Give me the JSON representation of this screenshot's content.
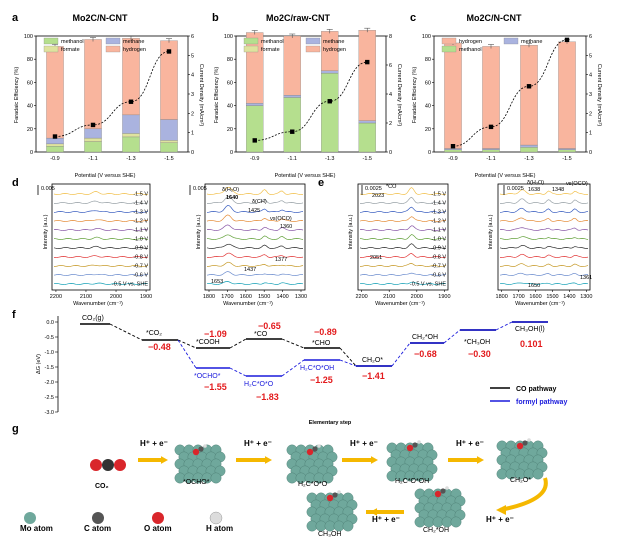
{
  "panels": {
    "a": {
      "letter": "a",
      "title": "Mo2C/N-CNT",
      "legend": [
        "methanol",
        "methane",
        "formate",
        "hydrogen"
      ],
      "ylabel": "Faradaic Efficiency (%)",
      "y2label": "Current Density (mA/cm²)",
      "xlabel": "Potential (V versus SHE)"
    },
    "b": {
      "letter": "b",
      "title": "Mo2C/raw-CNT",
      "legend": [
        "methanol",
        "methane",
        "formate",
        "hydrogen"
      ],
      "ylabel": "Faradaic Efficiency (%)",
      "y2label": "Current Density (mA/cm²)",
      "xlabel": "Potential (V versus SHE)"
    },
    "c": {
      "letter": "c",
      "title": "Mo2C/N-CNT",
      "legend": [
        "hydrogen",
        "methane",
        "methanol"
      ],
      "ylabel": "Faradaic Efficiency (%)",
      "y2label": "Current Density (mA/cm²)",
      "xlabel": "Potential (V versus SHE)"
    },
    "d": {
      "letter": "d",
      "scale_left": "0.005",
      "scale_right": "0.005",
      "ylabel": "Intensity (a.u.)",
      "xlabel": "Wavenumber (cm⁻¹)",
      "xticks_left": [
        "2200",
        "2100",
        "2000",
        "1900"
      ],
      "xticks_right": [
        "1800",
        "1700",
        "1600",
        "1500",
        "1400",
        "1300"
      ],
      "potentials": [
        "-1.5 V",
        "-1.4 V",
        "-1.3 V",
        "-1.2 V",
        "-1.1 V",
        "-1.0 V",
        "-0.9 V",
        "-0.8 V",
        "-0.7 V",
        "-0.6 V",
        "-0.5 V vs. SHE"
      ],
      "annotations": [
        "δ(H₂O)",
        "1640",
        "δ(CH)",
        "1425",
        "νs(OCO)",
        "1360",
        "1653",
        "1437",
        "1377"
      ]
    },
    "e": {
      "letter": "e",
      "scale_left": "0.0025",
      "scale_right": "0.0025",
      "ylabel": "Intensity (a.u.)",
      "xlabel": "Wavenumber (cm⁻¹)",
      "xticks_left": [
        "2200",
        "2100",
        "2000",
        "1900"
      ],
      "xticks_right": [
        "1800",
        "1700",
        "1600",
        "1500",
        "1400",
        "1300"
      ],
      "potentials": [
        "-1.5 V",
        "-1.4 V",
        "-1.3 V",
        "-1.2 V",
        "-1.1 V",
        "-1.0 V",
        "-0.9 V",
        "-0.8 V",
        "-0.7 V",
        "-0.6 V",
        "-0.5 V vs. SHE"
      ],
      "annotations": [
        "*CO",
        "2023",
        "2051",
        "δ(H₂O)",
        "1638",
        "1348",
        "νs(OCO)",
        "1650",
        "1361"
      ]
    },
    "f": {
      "letter": "f",
      "ylabel": "ΔG (eV)",
      "xlabel": "Elementary step",
      "legend": [
        "CO pathway",
        "formyl pathway"
      ],
      "species_co": [
        "CO₂(g)",
        "*CO₂",
        "*COOH",
        "*CO",
        "*CHO",
        "CH₂O*",
        "CH₂*OH",
        "*CH₃OH",
        "CH₃OH(l)"
      ],
      "species_formyl": [
        "*OCHO*",
        "H₂C*O*O",
        "H₂C*O*OH"
      ],
      "energies_co": [
        "−0.48",
        "−1.09",
        "−0.65",
        "−0.89",
        "−1.41",
        "−0.68",
        "−0.30",
        "0.101"
      ],
      "energies_formyl": [
        "−1.55",
        "−1.83",
        "−1.25"
      ]
    },
    "g": {
      "letter": "g",
      "step": "H⁺ + e⁻",
      "labels": [
        "CO₂",
        "*OCHO*",
        "H₂C*O*O",
        "H₂C*O*OH",
        "CH₂O*",
        "CH₂*OH",
        "CH₃OH"
      ],
      "atoms": [
        "Mo atom",
        "C atom",
        "O atom",
        "H atom"
      ]
    }
  },
  "chart_data": [
    {
      "type": "bar",
      "panel": "a",
      "title": "Mo2C/N-CNT",
      "categories": [
        "-0.9",
        "-1.1",
        "-1.3",
        "-1.5"
      ],
      "series": [
        {
          "name": "methanol",
          "values": [
            5,
            9,
            13,
            8
          ]
        },
        {
          "name": "formate",
          "values": [
            2,
            3,
            3,
            2
          ]
        },
        {
          "name": "methane",
          "values": [
            5,
            8,
            16,
            18
          ]
        },
        {
          "name": "hydrogen",
          "values": [
            79,
            77,
            66,
            68
          ]
        }
      ],
      "current_density": [
        0.8,
        1.4,
        2.6,
        5.2
      ],
      "ylim": [
        0,
        100
      ],
      "y2lim": [
        0,
        6
      ],
      "xlabel": "Potential (V versus SHE)",
      "ylabel": "Faradaic Efficiency (%)",
      "y2label": "Current Density (mA/cm²)"
    },
    {
      "type": "bar",
      "panel": "b",
      "title": "Mo2C/raw-CNT",
      "categories": [
        "-0.9",
        "-1.1",
        "-1.3",
        "-1.5"
      ],
      "series": [
        {
          "name": "methanol",
          "values": [
            40,
            47,
            68,
            25
          ]
        },
        {
          "name": "formate",
          "values": [
            0,
            0,
            0,
            0
          ]
        },
        {
          "name": "methane",
          "values": [
            2,
            2,
            2,
            2
          ]
        },
        {
          "name": "hydrogen",
          "values": [
            61,
            51,
            34,
            78
          ]
        }
      ],
      "current_density": [
        0.8,
        1.4,
        3.5,
        6.2
      ],
      "ylim": [
        0,
        100
      ],
      "y2lim": [
        0,
        8
      ],
      "xlabel": "Potential (V versus SHE)",
      "ylabel": "Faradaic Efficiency (%)",
      "y2label": "Current Density (mA/cm²)"
    },
    {
      "type": "bar",
      "panel": "c",
      "title": "Mo2C/N-CNT",
      "categories": [
        "-0.9",
        "-1.1",
        "-1.3",
        "-1.5"
      ],
      "series": [
        {
          "name": "methanol",
          "values": [
            2,
            2,
            4,
            2
          ]
        },
        {
          "name": "methane",
          "values": [
            1,
            1,
            2,
            1
          ]
        },
        {
          "name": "hydrogen",
          "values": [
            91,
            88,
            86,
            92
          ]
        }
      ],
      "current_density": [
        0.3,
        1.3,
        3.4,
        5.8
      ],
      "ylim": [
        0,
        100
      ],
      "y2lim": [
        0,
        6
      ],
      "xlabel": "Potential (V versus SHE)",
      "ylabel": "Faradaic Efficiency (%)",
      "y2label": "Current Density (mA/cm²)"
    }
  ],
  "colors": {
    "methanol": "#b5df8e",
    "methane": "#aab3df",
    "formate": "#dfe39e",
    "hydrogen": "#f9b59e",
    "co_pathway": "#000000",
    "formyl_pathway": "#1a1adc",
    "energy_co": "#e31a1c",
    "energy_formyl": "#e31a1c",
    "arrow": "#f5b800",
    "mo": "#6fa89c",
    "c": "#8a8a8a",
    "o": "#d9262b",
    "h": "#dcdcdc"
  }
}
